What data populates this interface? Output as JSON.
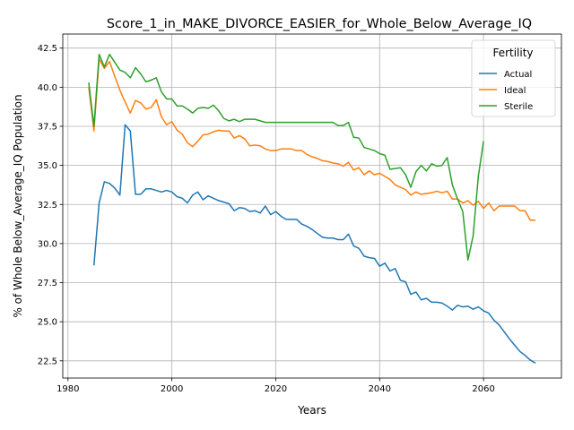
{
  "chart_data": {
    "type": "line",
    "title": "Score_1_in_MAKE_DIVORCE_EASIER_for_Whole_Below_Average_IQ",
    "xlabel": "Years",
    "ylabel": "% of Whole Below_Average_IQ Population",
    "xlim": [
      1979,
      2075
    ],
    "ylim": [
      21.4,
      43.4
    ],
    "xticks": [
      1980,
      2000,
      2020,
      2040,
      2060
    ],
    "yticks": [
      22.5,
      25.0,
      27.5,
      30.0,
      32.5,
      35.0,
      37.5,
      40.0,
      42.5
    ],
    "xtick_labels": [
      "1980",
      "2000",
      "2020",
      "2040",
      "2060"
    ],
    "ytick_labels": [
      "22.5",
      "25.0",
      "27.5",
      "30.0",
      "32.5",
      "35.0",
      "37.5",
      "40.0",
      "42.5"
    ],
    "grid": true,
    "legend": {
      "title": "Fertility",
      "position": "top-right"
    },
    "series": [
      {
        "name": "Actual",
        "color": "#1f77b4",
        "points": [
          [
            1985,
            28.6
          ],
          [
            1986,
            32.6
          ],
          [
            1987,
            33.95
          ],
          [
            1988,
            33.85
          ],
          [
            1989,
            33.55
          ],
          [
            1990,
            33.1
          ],
          [
            1991,
            37.6
          ],
          [
            1992,
            37.2
          ],
          [
            1993,
            33.15
          ],
          [
            1994,
            33.15
          ],
          [
            1995,
            33.5
          ],
          [
            1996,
            33.5
          ],
          [
            1997,
            33.4
          ],
          [
            1998,
            33.3
          ],
          [
            1999,
            33.4
          ],
          [
            2000,
            33.3
          ],
          [
            2001,
            33.0
          ],
          [
            2002,
            32.9
          ],
          [
            2003,
            32.6
          ],
          [
            2004,
            33.1
          ],
          [
            2005,
            33.3
          ],
          [
            2006,
            32.8
          ],
          [
            2007,
            33.05
          ],
          [
            2008,
            32.9
          ],
          [
            2009,
            32.75
          ],
          [
            2010,
            32.65
          ],
          [
            2011,
            32.55
          ],
          [
            2012,
            32.1
          ],
          [
            2013,
            32.3
          ],
          [
            2014,
            32.25
          ],
          [
            2015,
            32.05
          ],
          [
            2016,
            32.1
          ],
          [
            2017,
            31.95
          ],
          [
            2018,
            32.4
          ],
          [
            2019,
            31.85
          ],
          [
            2020,
            32.05
          ],
          [
            2021,
            31.75
          ],
          [
            2022,
            31.55
          ],
          [
            2023,
            31.55
          ],
          [
            2024,
            31.55
          ],
          [
            2025,
            31.25
          ],
          [
            2026,
            31.1
          ],
          [
            2027,
            30.9
          ],
          [
            2028,
            30.65
          ],
          [
            2029,
            30.4
          ],
          [
            2030,
            30.35
          ],
          [
            2031,
            30.35
          ],
          [
            2032,
            30.25
          ],
          [
            2033,
            30.25
          ],
          [
            2034,
            30.6
          ],
          [
            2035,
            29.85
          ],
          [
            2036,
            29.7
          ],
          [
            2037,
            29.2
          ],
          [
            2038,
            29.1
          ],
          [
            2039,
            29.05
          ],
          [
            2040,
            28.55
          ],
          [
            2041,
            28.75
          ],
          [
            2042,
            28.25
          ],
          [
            2043,
            28.4
          ],
          [
            2044,
            27.65
          ],
          [
            2045,
            27.55
          ],
          [
            2046,
            26.75
          ],
          [
            2047,
            26.9
          ],
          [
            2048,
            26.4
          ],
          [
            2049,
            26.5
          ],
          [
            2050,
            26.25
          ],
          [
            2051,
            26.25
          ],
          [
            2052,
            26.2
          ],
          [
            2053,
            26.0
          ],
          [
            2054,
            25.75
          ],
          [
            2055,
            26.05
          ],
          [
            2056,
            25.95
          ],
          [
            2057,
            26.0
          ],
          [
            2058,
            25.8
          ],
          [
            2059,
            25.95
          ],
          [
            2060,
            25.7
          ],
          [
            2061,
            25.55
          ],
          [
            2062,
            25.1
          ],
          [
            2063,
            24.8
          ],
          [
            2064,
            24.35
          ],
          [
            2065,
            23.9
          ],
          [
            2066,
            23.5
          ],
          [
            2067,
            23.1
          ],
          [
            2068,
            22.85
          ],
          [
            2069,
            22.55
          ],
          [
            2070,
            22.35
          ]
        ]
      },
      {
        "name": "Ideal",
        "color": "#ff7f0e",
        "points": [
          [
            1984,
            40.0
          ],
          [
            1985,
            37.2
          ],
          [
            1986,
            41.8
          ],
          [
            1987,
            41.2
          ],
          [
            1988,
            41.65
          ],
          [
            1989,
            40.7
          ],
          [
            1990,
            39.8
          ],
          [
            1991,
            39.05
          ],
          [
            1992,
            38.35
          ],
          [
            1993,
            39.15
          ],
          [
            1994,
            39.0
          ],
          [
            1995,
            38.6
          ],
          [
            1996,
            38.7
          ],
          [
            1997,
            39.2
          ],
          [
            1998,
            38.1
          ],
          [
            1999,
            37.6
          ],
          [
            2000,
            37.8
          ],
          [
            2001,
            37.25
          ],
          [
            2002,
            37.0
          ],
          [
            2003,
            36.45
          ],
          [
            2004,
            36.2
          ],
          [
            2005,
            36.55
          ],
          [
            2006,
            36.95
          ],
          [
            2007,
            37.0
          ],
          [
            2008,
            37.15
          ],
          [
            2009,
            37.25
          ],
          [
            2010,
            37.2
          ],
          [
            2011,
            37.2
          ],
          [
            2012,
            36.75
          ],
          [
            2013,
            36.9
          ],
          [
            2014,
            36.7
          ],
          [
            2015,
            36.25
          ],
          [
            2016,
            36.3
          ],
          [
            2017,
            36.25
          ],
          [
            2018,
            36.05
          ],
          [
            2019,
            35.95
          ],
          [
            2020,
            35.95
          ],
          [
            2021,
            36.05
          ],
          [
            2022,
            36.05
          ],
          [
            2023,
            36.05
          ],
          [
            2024,
            35.95
          ],
          [
            2025,
            35.95
          ],
          [
            2026,
            35.7
          ],
          [
            2027,
            35.55
          ],
          [
            2028,
            35.45
          ],
          [
            2029,
            35.3
          ],
          [
            2030,
            35.25
          ],
          [
            2031,
            35.15
          ],
          [
            2032,
            35.1
          ],
          [
            2033,
            34.95
          ],
          [
            2034,
            35.2
          ],
          [
            2035,
            34.7
          ],
          [
            2036,
            34.85
          ],
          [
            2037,
            34.4
          ],
          [
            2038,
            34.65
          ],
          [
            2039,
            34.4
          ],
          [
            2040,
            34.5
          ],
          [
            2041,
            34.3
          ],
          [
            2042,
            34.1
          ],
          [
            2043,
            33.75
          ],
          [
            2044,
            33.6
          ],
          [
            2045,
            33.45
          ],
          [
            2046,
            33.1
          ],
          [
            2047,
            33.3
          ],
          [
            2048,
            33.15
          ],
          [
            2049,
            33.2
          ],
          [
            2050,
            33.25
          ],
          [
            2051,
            33.35
          ],
          [
            2052,
            33.25
          ],
          [
            2053,
            33.35
          ],
          [
            2054,
            32.85
          ],
          [
            2055,
            32.85
          ],
          [
            2056,
            32.6
          ],
          [
            2057,
            32.75
          ],
          [
            2058,
            32.45
          ],
          [
            2059,
            32.7
          ],
          [
            2060,
            32.25
          ],
          [
            2061,
            32.6
          ],
          [
            2062,
            32.1
          ],
          [
            2063,
            32.4
          ],
          [
            2064,
            32.4
          ],
          [
            2065,
            32.4
          ],
          [
            2066,
            32.4
          ],
          [
            2067,
            32.1
          ],
          [
            2068,
            32.1
          ],
          [
            2069,
            31.5
          ],
          [
            2070,
            31.5
          ]
        ]
      },
      {
        "name": "Sterile",
        "color": "#2ca02c",
        "points": [
          [
            1984,
            40.3
          ],
          [
            1985,
            37.5
          ],
          [
            1986,
            42.1
          ],
          [
            1987,
            41.3
          ],
          [
            1988,
            42.1
          ],
          [
            1989,
            41.6
          ],
          [
            1990,
            41.1
          ],
          [
            1991,
            40.95
          ],
          [
            1992,
            40.6
          ],
          [
            1993,
            41.25
          ],
          [
            1994,
            40.85
          ],
          [
            1995,
            40.35
          ],
          [
            1996,
            40.45
          ],
          [
            1997,
            40.6
          ],
          [
            1998,
            39.7
          ],
          [
            1999,
            39.25
          ],
          [
            2000,
            39.25
          ],
          [
            2001,
            38.8
          ],
          [
            2002,
            38.8
          ],
          [
            2003,
            38.6
          ],
          [
            2004,
            38.35
          ],
          [
            2005,
            38.65
          ],
          [
            2006,
            38.7
          ],
          [
            2007,
            38.65
          ],
          [
            2008,
            38.85
          ],
          [
            2009,
            38.5
          ],
          [
            2010,
            38.0
          ],
          [
            2011,
            37.85
          ],
          [
            2012,
            37.95
          ],
          [
            2013,
            37.8
          ],
          [
            2014,
            37.95
          ],
          [
            2015,
            37.95
          ],
          [
            2016,
            37.95
          ],
          [
            2017,
            37.85
          ],
          [
            2018,
            37.75
          ],
          [
            2019,
            37.75
          ],
          [
            2020,
            37.75
          ],
          [
            2021,
            37.75
          ],
          [
            2022,
            37.75
          ],
          [
            2023,
            37.75
          ],
          [
            2024,
            37.75
          ],
          [
            2025,
            37.75
          ],
          [
            2026,
            37.75
          ],
          [
            2027,
            37.75
          ],
          [
            2028,
            37.75
          ],
          [
            2029,
            37.75
          ],
          [
            2030,
            37.75
          ],
          [
            2031,
            37.75
          ],
          [
            2032,
            37.55
          ],
          [
            2033,
            37.55
          ],
          [
            2034,
            37.75
          ],
          [
            2035,
            36.8
          ],
          [
            2036,
            36.75
          ],
          [
            2037,
            36.15
          ],
          [
            2038,
            36.05
          ],
          [
            2039,
            35.95
          ],
          [
            2040,
            35.75
          ],
          [
            2041,
            35.65
          ],
          [
            2042,
            34.75
          ],
          [
            2043,
            34.8
          ],
          [
            2044,
            34.85
          ],
          [
            2045,
            34.4
          ],
          [
            2046,
            33.6
          ],
          [
            2047,
            34.6
          ],
          [
            2048,
            35.0
          ],
          [
            2049,
            34.65
          ],
          [
            2050,
            35.1
          ],
          [
            2051,
            34.95
          ],
          [
            2052,
            35.0
          ],
          [
            2053,
            35.5
          ],
          [
            2054,
            33.75
          ],
          [
            2055,
            32.85
          ],
          [
            2056,
            32.05
          ],
          [
            2057,
            28.95
          ],
          [
            2058,
            30.5
          ],
          [
            2059,
            34.3
          ],
          [
            2060,
            36.55
          ]
        ]
      }
    ]
  }
}
